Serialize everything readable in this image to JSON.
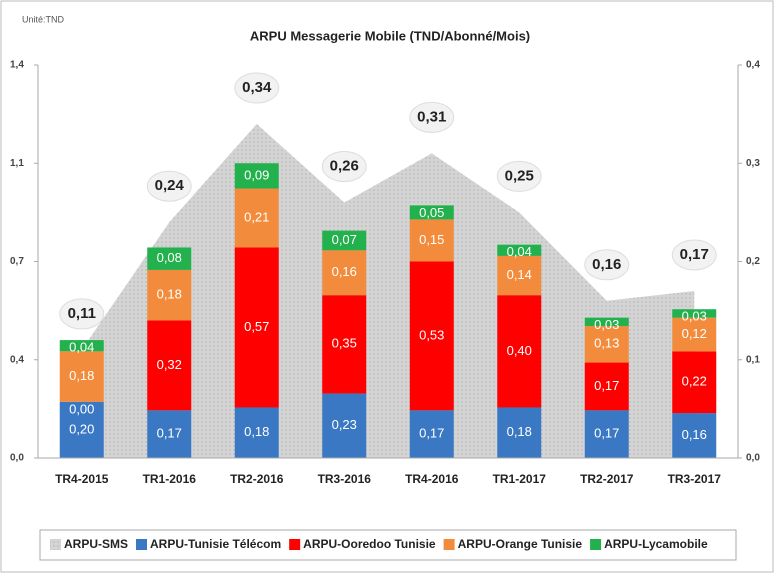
{
  "chart_data": {
    "type": "bar",
    "stacked": true,
    "title": "ARPU Messagerie Mobile (TND/Abonné/Mois)",
    "annotation": "Unité:TND",
    "categories": [
      "TR4-2015",
      "TR1-2016",
      "TR2-2016",
      "TR3-2016",
      "TR4-2016",
      "TR1-2017",
      "TR2-2017",
      "TR3-2017"
    ],
    "ylim": [
      0,
      1.4
    ],
    "yticks": [
      {
        "value": 0,
        "label": "0,0"
      },
      {
        "value": 0.35,
        "label": "0,4"
      },
      {
        "value": 0.7,
        "label": "0,7"
      },
      {
        "value": 1.05,
        "label": "1,1"
      },
      {
        "value": 1.4,
        "label": "1,4"
      }
    ],
    "y2lim": [
      0,
      0.4
    ],
    "y2ticks": [
      {
        "value": 0,
        "label": "0,0"
      },
      {
        "value": 0.1,
        "label": "0,1"
      },
      {
        "value": 0.2,
        "label": "0,2"
      },
      {
        "value": 0.3,
        "label": "0,3"
      },
      {
        "value": 0.4,
        "label": "0,4"
      }
    ],
    "legend": "bottom",
    "series": [
      {
        "name": "ARPU-SMS",
        "type": "area",
        "axis": "y2",
        "color": "#d9d9d9",
        "values": [
          0.11,
          0.24,
          0.34,
          0.26,
          0.31,
          0.25,
          0.16,
          0.17
        ],
        "value_labels": [
          "0,11",
          "0,24",
          "0,34",
          "0,26",
          "0,31",
          "0,25",
          "0,16",
          "0,17"
        ]
      },
      {
        "name": "ARPU-Tunisie Télécom",
        "color": "#3a78c3",
        "values": [
          0.2,
          0.17,
          0.18,
          0.23,
          0.17,
          0.18,
          0.17,
          0.16
        ],
        "value_labels": [
          "0,20",
          "0,17",
          "0,18",
          "0,23",
          "0,17",
          "0,18",
          "0,17",
          "0,16"
        ]
      },
      {
        "name": "ARPU-Ooredoo Tunisie",
        "color": "#ff0000",
        "values": [
          0.0,
          0.32,
          0.57,
          0.35,
          0.53,
          0.4,
          0.17,
          0.22
        ],
        "value_labels": [
          "0,00",
          "0,32",
          "0,57",
          "0,35",
          "0,53",
          "0,40",
          "0,17",
          "0,22"
        ]
      },
      {
        "name": "ARPU-Orange Tunisie",
        "color": "#f28c3c",
        "values": [
          0.18,
          0.18,
          0.21,
          0.16,
          0.15,
          0.14,
          0.13,
          0.12
        ],
        "value_labels": [
          "0,18",
          "0,18",
          "0,21",
          "0,16",
          "0,15",
          "0,14",
          "0,13",
          "0,12"
        ]
      },
      {
        "name": "ARPU-Lycamobile",
        "color": "#22b14c",
        "values": [
          0.04,
          0.08,
          0.09,
          0.07,
          0.05,
          0.04,
          0.03,
          0.03
        ],
        "value_labels": [
          "0,04",
          "0,08",
          "0,09",
          "0,07",
          "0,05",
          "0,04",
          "0,03",
          "0,03"
        ]
      }
    ]
  }
}
